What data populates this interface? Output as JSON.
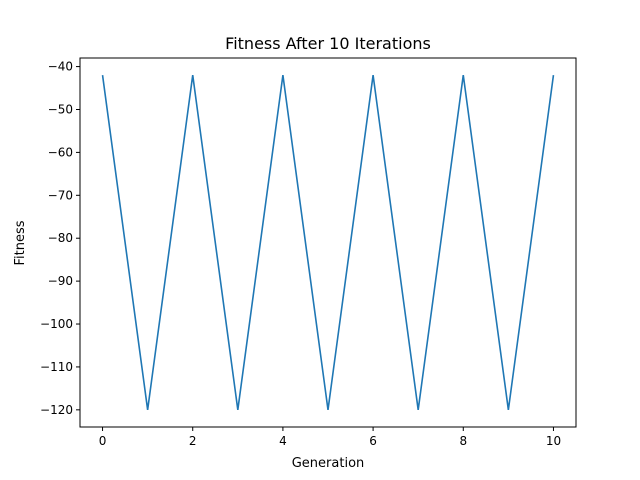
{
  "chart_data": {
    "type": "line",
    "title": "Fitness After 10 Iterations",
    "xlabel": "Generation",
    "ylabel": "Fitness",
    "xlim": [
      -0.5,
      10.5
    ],
    "ylim": [
      -124,
      -38
    ],
    "xticks": [
      0,
      2,
      4,
      6,
      8,
      10
    ],
    "xtick_labels": [
      "0",
      "2",
      "4",
      "6",
      "8",
      "10"
    ],
    "yticks": [
      -40,
      -50,
      -60,
      -70,
      -80,
      -90,
      -100,
      -110,
      -120
    ],
    "ytick_labels": [
      "−40",
      "−50",
      "−60",
      "−70",
      "−80",
      "−90",
      "−100",
      "−110",
      "−120"
    ],
    "grid": false,
    "series": [
      {
        "color": "#1f77b4",
        "x": [
          0,
          1,
          2,
          3,
          4,
          5,
          6,
          7,
          8,
          9,
          10
        ],
        "y": [
          -42,
          -120,
          -42,
          -120,
          -42,
          -120,
          -42,
          -120,
          -42,
          -120,
          -42
        ]
      }
    ]
  }
}
